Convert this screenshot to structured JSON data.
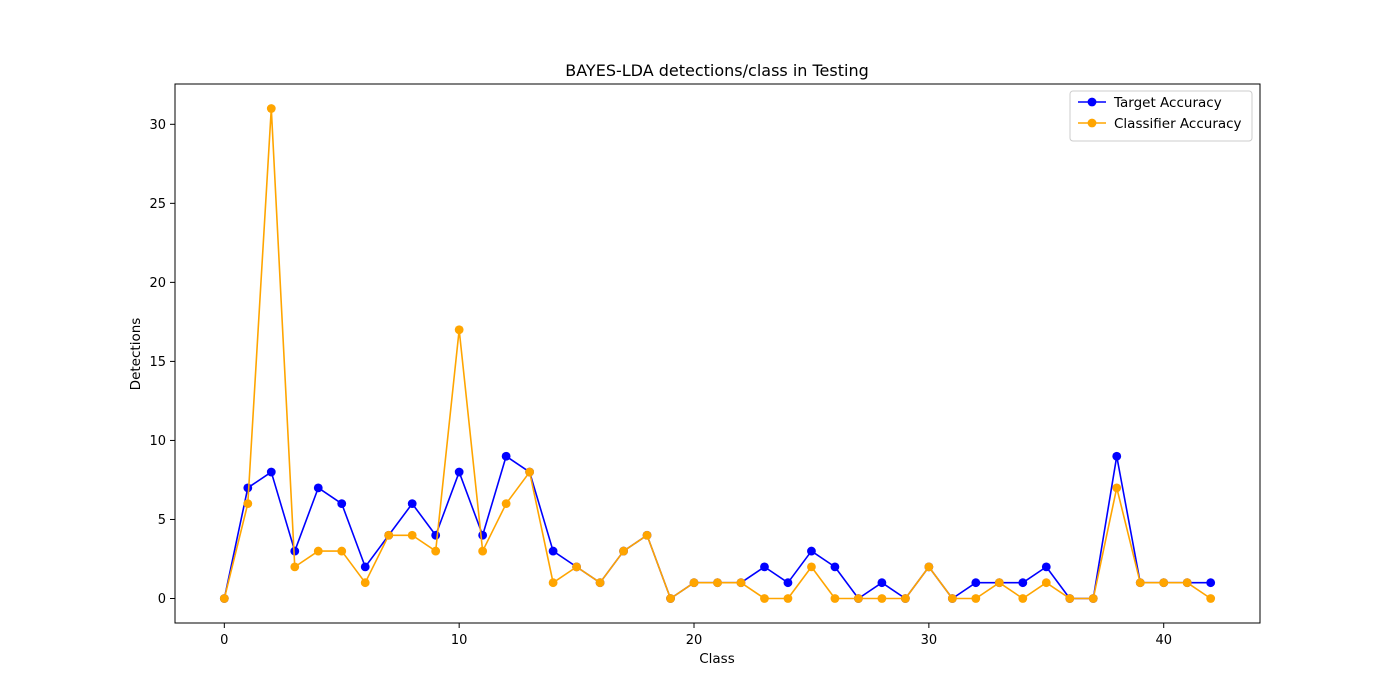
{
  "chart_data": {
    "type": "line",
    "title": "BAYES-LDA detections/class in Testing",
    "xlabel": "Class",
    "ylabel": "Detections",
    "xlim": [
      -2.1,
      44.1
    ],
    "ylim": [
      -1.55,
      32.55
    ],
    "xticks": [
      0,
      10,
      20,
      30,
      40
    ],
    "yticks": [
      0,
      5,
      10,
      15,
      20,
      25,
      30
    ],
    "grid": false,
    "legend_position": "top-right",
    "x": [
      0,
      1,
      2,
      3,
      4,
      5,
      6,
      7,
      8,
      9,
      10,
      11,
      12,
      13,
      14,
      15,
      16,
      17,
      18,
      19,
      20,
      21,
      22,
      23,
      24,
      25,
      26,
      27,
      28,
      29,
      30,
      31,
      32,
      33,
      34,
      35,
      36,
      37,
      38,
      39,
      40,
      41,
      42
    ],
    "series": [
      {
        "name": "Target Accuracy",
        "color": "#0000ff",
        "marker": "circle",
        "values": [
          0,
          7,
          8,
          3,
          7,
          6,
          2,
          4,
          6,
          4,
          8,
          4,
          9,
          8,
          3,
          2,
          1,
          3,
          4,
          0,
          1,
          1,
          1,
          2,
          1,
          3,
          2,
          0,
          1,
          0,
          2,
          0,
          1,
          1,
          1,
          2,
          0,
          0,
          9,
          1,
          1,
          1,
          1
        ]
      },
      {
        "name": "Classifier Accuracy",
        "color": "#ffa500",
        "marker": "circle",
        "values": [
          0,
          6,
          31,
          2,
          3,
          3,
          1,
          4,
          4,
          3,
          17,
          3,
          6,
          8,
          1,
          2,
          1,
          3,
          4,
          0,
          1,
          1,
          1,
          0,
          0,
          2,
          0,
          0,
          0,
          0,
          2,
          0,
          0,
          1,
          0,
          1,
          0,
          0,
          7,
          1,
          1,
          1,
          0
        ]
      }
    ]
  }
}
